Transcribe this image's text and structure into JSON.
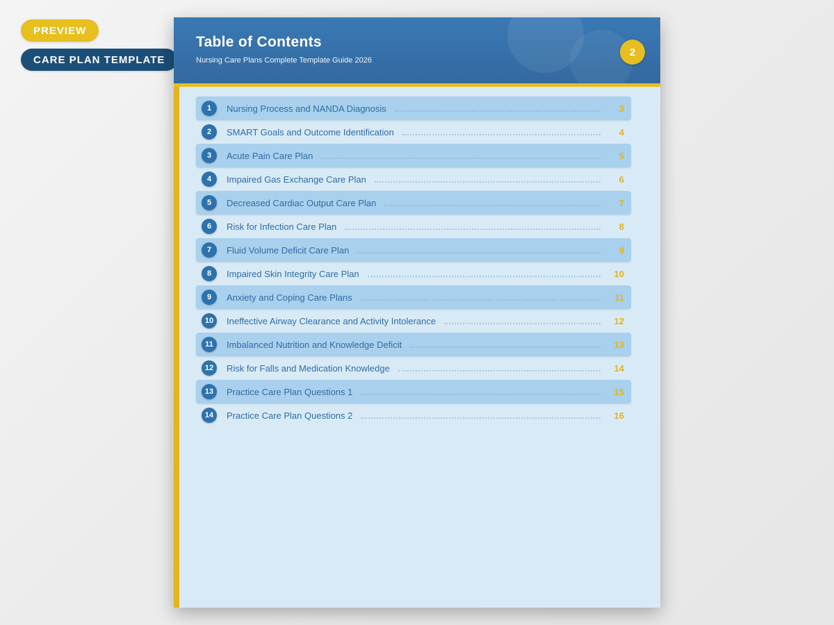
{
  "badges": {
    "preview": "PREVIEW",
    "template": "CARE PLAN TEMPLATE"
  },
  "header": {
    "title": "Table of Contents",
    "subtitle": "Nursing Care Plans Complete Template Guide 2026",
    "page_badge": "2"
  },
  "toc": {
    "items": [
      {
        "number": "1",
        "label": "Nursing Process and NANDA Diagnosis",
        "page": "3"
      },
      {
        "number": "2",
        "label": "SMART Goals and Outcome Identification",
        "page": "4"
      },
      {
        "number": "3",
        "label": "Acute Pain Care Plan",
        "page": "5"
      },
      {
        "number": "4",
        "label": "Impaired Gas Exchange Care Plan",
        "page": "6"
      },
      {
        "number": "5",
        "label": "Decreased Cardiac Output Care Plan",
        "page": "7"
      },
      {
        "number": "6",
        "label": "Risk for Infection Care Plan",
        "page": "8"
      },
      {
        "number": "7",
        "label": "Fluid Volume Deficit Care Plan",
        "page": "9"
      },
      {
        "number": "8",
        "label": "Impaired Skin Integrity Care Plan",
        "page": "10"
      },
      {
        "number": "9",
        "label": "Anxiety and Coping Care Plans",
        "page": "11"
      },
      {
        "number": "10",
        "label": "Ineffective Airway Clearance and Activity Intolerance",
        "page": "12"
      },
      {
        "number": "11",
        "label": "Imbalanced Nutrition and Knowledge Deficit",
        "page": "13"
      },
      {
        "number": "12",
        "label": "Risk for Falls and Medication Knowledge",
        "page": "14"
      },
      {
        "number": "13",
        "label": "Practice Care Plan Questions 1",
        "page": "15"
      },
      {
        "number": "14",
        "label": "Practice Care Plan Questions 2",
        "page": "16"
      }
    ]
  },
  "colors": {
    "accent-yellow": "#e7bf1e",
    "stripe-yellow": "#e3b41c",
    "header-blue": "#3a79b5",
    "page-bg": "#d9eaf7",
    "row-shade": "#a9d0ec",
    "badge-blue": "#2d72ac",
    "label-blue": "#2f6da5",
    "page-num": "#e0b41f",
    "pill-navy": "#1b4e79"
  }
}
